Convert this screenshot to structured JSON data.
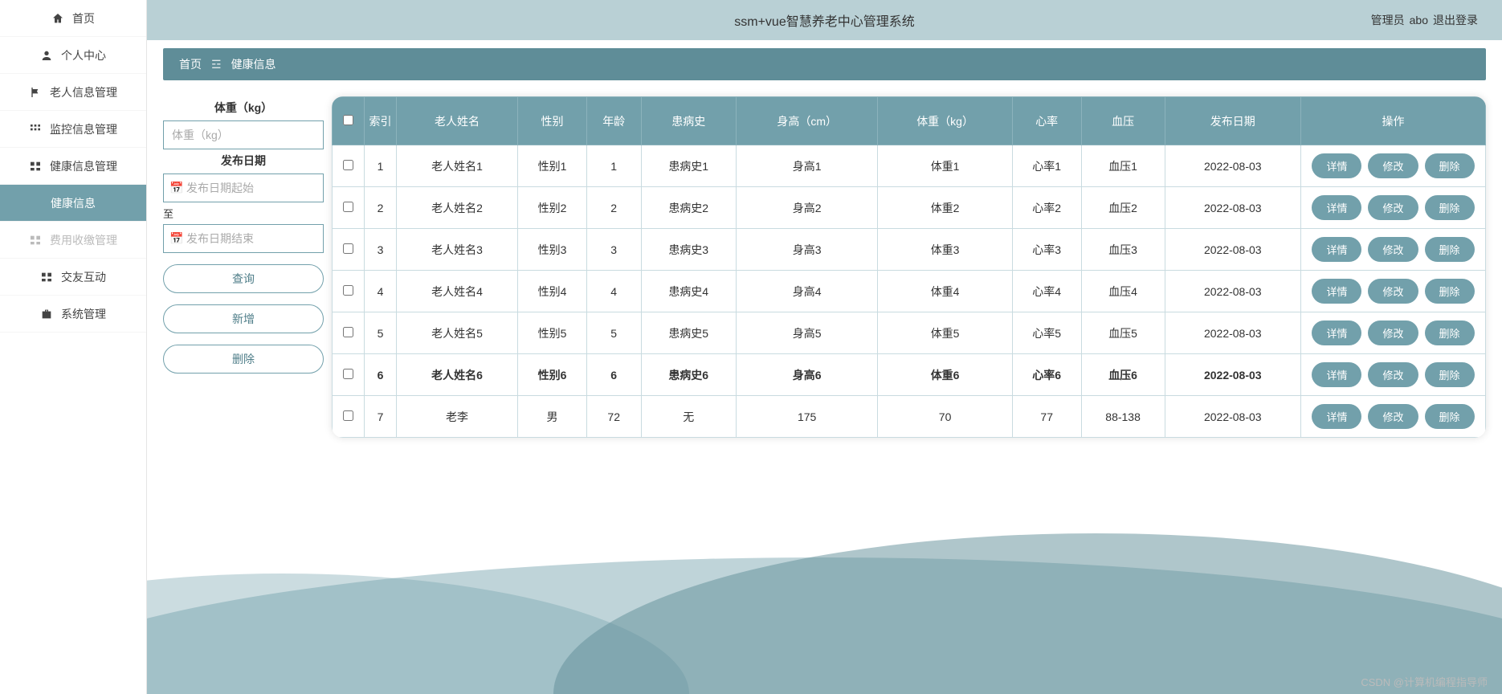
{
  "header": {
    "title": "ssm+vue智慧养老中心管理系统",
    "role": "管理员",
    "username": "abo",
    "logout": "退出登录"
  },
  "watermark": "CSDN @计算机编程指导师",
  "sidebar": {
    "items": [
      {
        "label": "首页",
        "icon": "home"
      },
      {
        "label": "个人中心",
        "icon": "user"
      },
      {
        "label": "老人信息管理",
        "icon": "flag"
      },
      {
        "label": "监控信息管理",
        "icon": "grid"
      },
      {
        "label": "健康信息管理",
        "icon": "grid2"
      },
      {
        "label": "健康信息",
        "icon": "",
        "active": true,
        "sub": true
      },
      {
        "label": "费用收缴管理",
        "icon": "grid2",
        "sub": true,
        "disabled": true
      },
      {
        "label": "交友互动",
        "icon": "grid2"
      },
      {
        "label": "系统管理",
        "icon": "briefcase"
      }
    ]
  },
  "breadcrumb": {
    "home": "首页",
    "sep": "☲",
    "current": "健康信息"
  },
  "filter": {
    "weight_label": "体重（kg）",
    "weight_placeholder": "体重（kg）",
    "date_label": "发布日期",
    "date_start_placeholder": "发布日期起始",
    "to": "至",
    "date_end_placeholder": "发布日期结束",
    "search": "查询",
    "add": "新增",
    "delete": "删除"
  },
  "table": {
    "columns": [
      "",
      "索引",
      "老人姓名",
      "性别",
      "年龄",
      "患病史",
      "身高（cm）",
      "体重（kg）",
      "心率",
      "血压",
      "发布日期",
      "操作"
    ],
    "ops": {
      "detail": "详情",
      "edit": "修改",
      "del": "删除"
    },
    "rows": [
      {
        "idx": "1",
        "name": "老人姓名1",
        "sex": "性别1",
        "age": "1",
        "history": "患病史1",
        "height": "身高1",
        "weight": "体重1",
        "hr": "心率1",
        "bp": "血压1",
        "date": "2022-08-03",
        "bold": false
      },
      {
        "idx": "2",
        "name": "老人姓名2",
        "sex": "性别2",
        "age": "2",
        "history": "患病史2",
        "height": "身高2",
        "weight": "体重2",
        "hr": "心率2",
        "bp": "血压2",
        "date": "2022-08-03",
        "bold": false
      },
      {
        "idx": "3",
        "name": "老人姓名3",
        "sex": "性别3",
        "age": "3",
        "history": "患病史3",
        "height": "身高3",
        "weight": "体重3",
        "hr": "心率3",
        "bp": "血压3",
        "date": "2022-08-03",
        "bold": false
      },
      {
        "idx": "4",
        "name": "老人姓名4",
        "sex": "性别4",
        "age": "4",
        "history": "患病史4",
        "height": "身高4",
        "weight": "体重4",
        "hr": "心率4",
        "bp": "血压4",
        "date": "2022-08-03",
        "bold": false
      },
      {
        "idx": "5",
        "name": "老人姓名5",
        "sex": "性别5",
        "age": "5",
        "history": "患病史5",
        "height": "身高5",
        "weight": "体重5",
        "hr": "心率5",
        "bp": "血压5",
        "date": "2022-08-03",
        "bold": false
      },
      {
        "idx": "6",
        "name": "老人姓名6",
        "sex": "性别6",
        "age": "6",
        "history": "患病史6",
        "height": "身高6",
        "weight": "体重6",
        "hr": "心率6",
        "bp": "血压6",
        "date": "2022-08-03",
        "bold": true
      },
      {
        "idx": "7",
        "name": "老李",
        "sex": "男",
        "age": "72",
        "history": "无",
        "height": "175",
        "weight": "70",
        "hr": "77",
        "bp": "88-138",
        "date": "2022-08-03",
        "bold": false
      }
    ]
  },
  "colors": {
    "primary": "#72a0ab",
    "primary_dark": "#5f8d98",
    "header_bg": "#b9d0d5",
    "border": "#c9dbe0"
  }
}
